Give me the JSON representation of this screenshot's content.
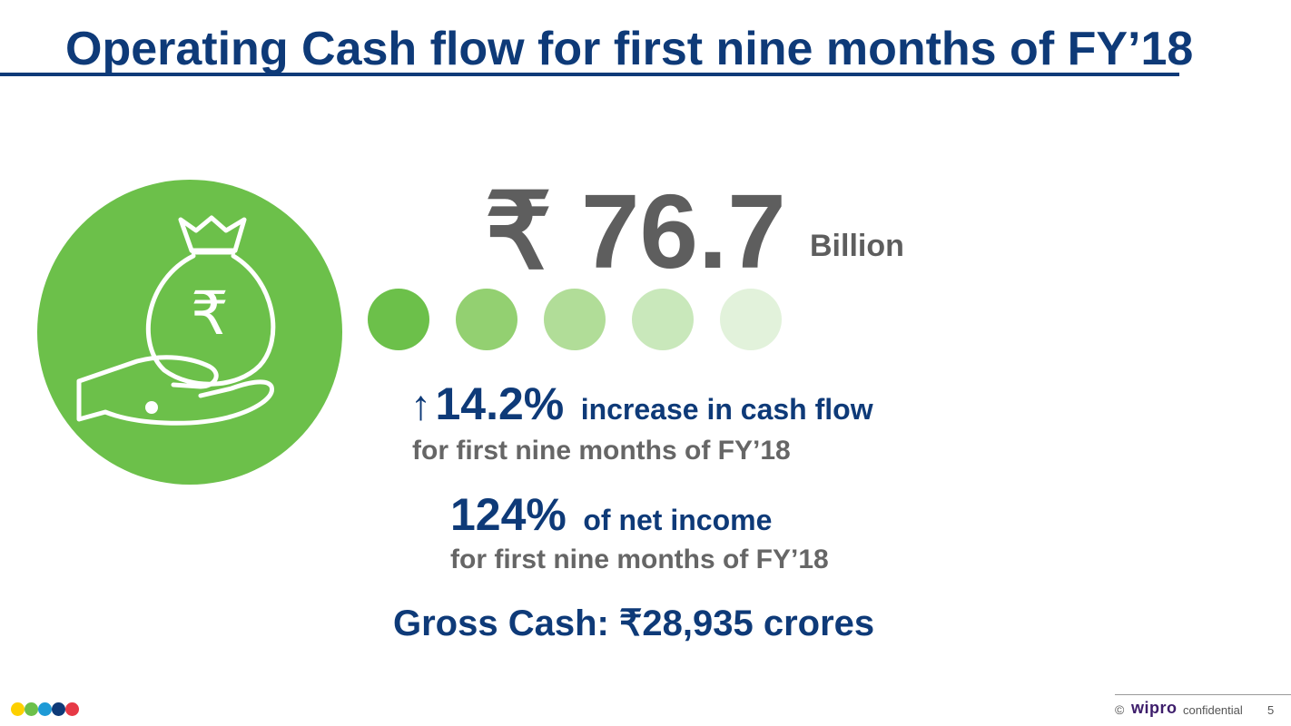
{
  "slide": {
    "title": "Operating Cash flow for first nine months of FY’18",
    "amount": "₹ 76.7",
    "amount_unit": "Billion",
    "increase": {
      "arrow": "↑",
      "value": "14.2%",
      "label": "increase in cash flow",
      "sub": "for first nine months of FY’18"
    },
    "net_income": {
      "value": "124%",
      "label": "of net income",
      "sub": "for first nine months of FY’18"
    },
    "gross_cash": "Gross Cash: ₹28,935 crores",
    "icon_name": "money-bag-in-hand-icon",
    "icon_glyph": "₹",
    "colors": {
      "title": "#0e3a78",
      "green": "#6cc04a",
      "dot_shades": [
        "#6cc04a",
        "#93d071",
        "#b1dd98",
        "#c9e8bb",
        "#e2f2db"
      ]
    }
  },
  "footer": {
    "copyright": "©",
    "brand": "wipro",
    "confidential": "confidential",
    "page_number": "5",
    "brand_dot_colors": [
      "#fdd000",
      "#6cc04a",
      "#1e9ad6",
      "#0e3a78",
      "#e63946"
    ]
  }
}
